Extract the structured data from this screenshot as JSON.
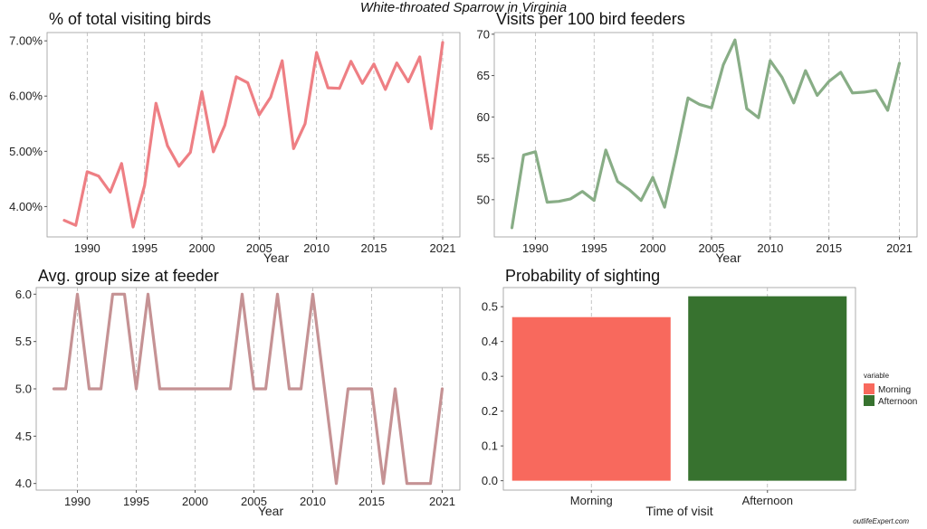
{
  "figure_title": "White-throated Sparrow in Virginia",
  "watermark": "outlifeExpert.com",
  "chart_data": [
    {
      "type": "line",
      "title": "% of total visiting birds",
      "xlabel": "Year",
      "ylabel": "",
      "color": "#ee7f84",
      "x": [
        1988,
        1989,
        1990,
        1991,
        1992,
        1993,
        1994,
        1995,
        1996,
        1997,
        1998,
        1999,
        2000,
        2001,
        2002,
        2003,
        2004,
        2005,
        2006,
        2007,
        2008,
        2009,
        2010,
        2011,
        2012,
        2013,
        2014,
        2015,
        2016,
        2017,
        2018,
        2019,
        2020,
        2021
      ],
      "values": [
        3.75,
        3.66,
        4.63,
        4.55,
        4.26,
        4.78,
        3.63,
        4.38,
        5.87,
        5.1,
        4.73,
        4.98,
        6.08,
        4.99,
        5.47,
        6.35,
        6.24,
        5.66,
        5.98,
        6.64,
        5.05,
        5.5,
        6.79,
        6.15,
        6.14,
        6.63,
        6.23,
        6.58,
        6.12,
        6.6,
        6.26,
        6.71,
        5.41,
        6.97
      ],
      "ylim": [
        3.45,
        7.15
      ],
      "xlim": [
        1986.5,
        2022.5
      ],
      "xticks": [
        "1990",
        "1995",
        "2000",
        "2005",
        "2010",
        "2015",
        "2021"
      ],
      "yticks": [
        "4.00%",
        "5.00%",
        "6.00%",
        "7.00%"
      ],
      "grid": "vertical dashed at x ticks"
    },
    {
      "type": "line",
      "title": "Visits per 100 bird feeders",
      "xlabel": "Year",
      "ylabel": "",
      "color": "#88ad86",
      "x": [
        1988,
        1989,
        1990,
        1991,
        1992,
        1993,
        1994,
        1995,
        1996,
        1997,
        1998,
        1999,
        2000,
        2001,
        2002,
        2003,
        2004,
        2005,
        2006,
        2007,
        2008,
        2009,
        2010,
        2011,
        2012,
        2013,
        2014,
        2015,
        2016,
        2017,
        2018,
        2019,
        2020,
        2021
      ],
      "values": [
        46.6,
        55.4,
        55.8,
        49.7,
        49.8,
        50.1,
        51.0,
        49.9,
        56.0,
        52.2,
        51.2,
        49.9,
        52.7,
        49.1,
        55.5,
        62.3,
        61.5,
        61.1,
        66.3,
        69.3,
        61.0,
        59.9,
        66.8,
        64.8,
        61.7,
        65.6,
        62.6,
        64.3,
        65.4,
        62.9,
        63.0,
        63.2,
        60.8,
        66.5
      ],
      "ylim": [
        45.5,
        70.2
      ],
      "xlim": [
        1986.5,
        2022.5
      ],
      "xticks": [
        "1990",
        "1995",
        "2000",
        "2005",
        "2010",
        "2015",
        "2021"
      ],
      "yticks": [
        "50",
        "55",
        "60",
        "65",
        "70"
      ],
      "grid": "vertical dashed at x ticks"
    },
    {
      "type": "line",
      "title": "Avg. group size at feeder",
      "xlabel": "Year",
      "ylabel": "",
      "color": "#c59294",
      "x": [
        1988,
        1989,
        1990,
        1991,
        1992,
        1993,
        1994,
        1995,
        1996,
        1997,
        1998,
        1999,
        2000,
        2001,
        2002,
        2003,
        2004,
        2005,
        2006,
        2007,
        2008,
        2009,
        2010,
        2011,
        2012,
        2013,
        2014,
        2015,
        2016,
        2017,
        2018,
        2019,
        2020,
        2021
      ],
      "values": [
        5,
        5,
        6,
        5,
        5,
        6,
        6,
        5,
        6,
        5,
        5,
        5,
        5,
        5,
        5,
        5,
        6,
        5,
        5,
        6,
        5,
        5,
        6,
        5,
        4,
        5,
        5,
        5,
        4,
        5,
        4,
        4,
        4,
        5
      ],
      "ylim": [
        3.93,
        6.07
      ],
      "xlim": [
        1986.5,
        2022.5
      ],
      "xticks": [
        "1990",
        "1995",
        "2000",
        "2005",
        "2010",
        "2015",
        "2021"
      ],
      "yticks": [
        "4.0",
        "4.5",
        "5.0",
        "5.5",
        "6.0"
      ],
      "grid": "vertical dashed at x ticks"
    },
    {
      "type": "bar",
      "title": "Probability of sighting",
      "xlabel": "Time of visit",
      "ylabel": "",
      "categories": [
        "Morning",
        "Afternoon"
      ],
      "values": [
        0.47,
        0.53
      ],
      "colors": [
        "#f8695d",
        "#37722f"
      ],
      "ylim": [
        -0.027,
        0.555
      ],
      "yticks": [
        "0.0",
        "0.1",
        "0.2",
        "0.3",
        "0.4",
        "0.5"
      ],
      "legend": {
        "title": "variable",
        "entries": [
          "Morning",
          "Afternoon"
        ],
        "position": "right"
      }
    }
  ]
}
